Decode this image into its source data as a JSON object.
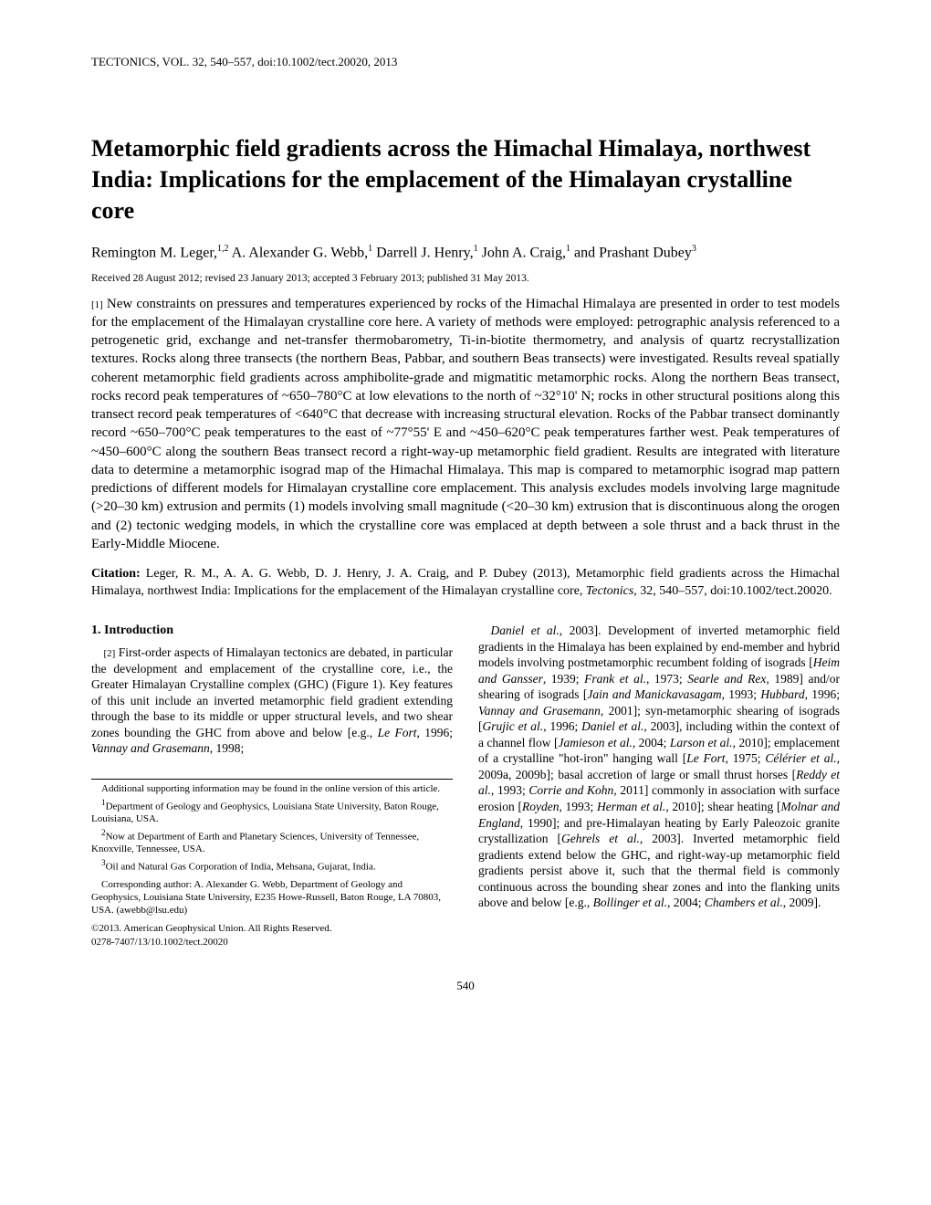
{
  "running_head": "TECTONICS, VOL. 32, 540–557, doi:10.1002/tect.20020, 2013",
  "title": "Metamorphic field gradients across the Himachal Himalaya, northwest India: Implications for the emplacement of the Himalayan crystalline core",
  "authors_html": "Remington M. Leger,<sup>1,2</sup> A. Alexander G. Webb,<sup>1</sup> Darrell J. Henry,<sup>1</sup> John A. Craig,<sup>1</sup> and Prashant Dubey<sup>3</sup>",
  "received": "Received 28 August 2012; revised 23 January 2013; accepted 3 February 2013; published 31 May 2013.",
  "abstract_num": "[1]",
  "abstract_text": "New constraints on pressures and temperatures experienced by rocks of the Himachal Himalaya are presented in order to test models for the emplacement of the Himalayan crystalline core here. A variety of methods were employed: petrographic analysis referenced to a petrogenetic grid, exchange and net-transfer thermobarometry, Ti-in-biotite thermometry, and analysis of quartz recrystallization textures. Rocks along three transects (the northern Beas, Pabbar, and southern Beas transects) were investigated. Results reveal spatially coherent metamorphic field gradients across amphibolite-grade and migmatitic metamorphic rocks. Along the northern Beas transect, rocks record peak temperatures of ~650–780°C at low elevations to the north of ~32°10' N; rocks in other structural positions along this transect record peak temperatures of <640°C that decrease with increasing structural elevation. Rocks of the Pabbar transect dominantly record ~650–700°C peak temperatures to the east of ~77°55' E and ~450–620°C peak temperatures farther west. Peak temperatures of ~450–600°C along the southern Beas transect record a right-way-up metamorphic field gradient. Results are integrated with literature data to determine a metamorphic isograd map of the Himachal Himalaya. This map is compared to metamorphic isograd map pattern predictions of different models for Himalayan crystalline core emplacement. This analysis excludes models involving large magnitude (>20–30 km) extrusion and permits (1) models involving small magnitude (<20–30 km) extrusion that is discontinuous along the orogen and (2) tectonic wedging models, in which the crystalline core was emplaced at depth between a sole thrust and a back thrust in the Early-Middle Miocene.",
  "citation_label": "Citation:",
  "citation_text": "Leger, R. M., A. A. G. Webb, D. J. Henry, J. A. Craig, and P. Dubey (2013), Metamorphic field gradients across the Himachal Himalaya, northwest India: Implications for the emplacement of the Himalayan crystalline core,",
  "citation_journal": "Tectonics",
  "citation_vol": ", 32, 540–557, doi:10.1002/tect.20020.",
  "section1_head": "1.   Introduction",
  "intro_num": "[2]",
  "intro_left": "First-order aspects of Himalayan tectonics are debated, in particular the development and emplacement of the crystalline core, i.e., the Greater Himalayan Crystalline complex (GHC) (Figure 1). Key features of this unit include an inverted metamorphic field gradient extending through the base to its middle or upper structural levels, and two shear zones bounding the GHC from above and below [e.g., Le Fort, 1996; Vannay and Grasemann, 1998;",
  "intro_right": "Daniel et al., 2003]. Development of inverted metamorphic field gradients in the Himalaya has been explained by end-member and hybrid models involving postmetamorphic recumbent folding of isograds [Heim and Gansser, 1939; Frank et al., 1973; Searle and Rex, 1989] and/or shearing of isograds [Jain and Manickavasagam, 1993; Hubbard, 1996; Vannay and Grasemann, 2001]; syn-metamorphic shearing of isograds [Grujic et al., 1996; Daniel et al., 2003], including within the context of a channel flow [Jamieson et al., 2004; Larson et al., 2010]; emplacement of a crystalline \"hot-iron\" hanging wall [Le Fort, 1975; Célérier et al., 2009a, 2009b]; basal accretion of large or small thrust horses [Reddy et al., 1993; Corrie and Kohn, 2011] commonly in association with surface erosion [Royden, 1993; Herman et al., 2010]; shear heating [Molnar and England, 1990]; and pre-Himalayan heating by Early Paleozoic granite crystallization [Gehrels et al., 2003]. Inverted metamorphic field gradients extend below the GHC, and right-way-up metamorphic field gradients persist above it, such that the thermal field is commonly continuous across the bounding shear zones and into the flanking units above and below [e.g., Bollinger et al., 2004; Chambers et al., 2009].",
  "footnotes": {
    "supp": "Additional supporting information may be found in the online version of this article.",
    "a1": "Department of Geology and Geophysics, Louisiana State University, Baton Rouge, Louisiana, USA.",
    "a2": "Now at Department of Earth and Planetary Sciences, University of Tennessee, Knoxville, Tennessee, USA.",
    "a3": "Oil and Natural Gas Corporation of India, Mehsana, Gujarat, India.",
    "corr": "Corresponding author: A. Alexander G. Webb, Department of Geology and Geophysics, Louisiana State University, E235 Howe-Russell, Baton Rouge, LA 70803, USA. (awebb@lsu.edu)",
    "copyright": "©2013. American Geophysical Union. All Rights Reserved.",
    "issn": "0278-7407/13/10.1002/tect.20020"
  },
  "page_number": "540"
}
